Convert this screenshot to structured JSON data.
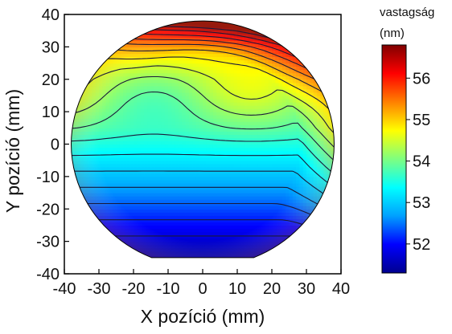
{
  "chart_data": {
    "type": "heatmap",
    "subtype": "contour map on circular wafer",
    "xlabel": "X pozíció (mm)",
    "ylabel": "Y pozíció (mm)",
    "xlim": [
      -40,
      40
    ],
    "ylim": [
      -40,
      40
    ],
    "x_ticks": [
      "-40",
      "-30",
      "-20",
      "-10",
      "0",
      "10",
      "20",
      "30",
      "40"
    ],
    "y_ticks": [
      "40",
      "30",
      "20",
      "10",
      "0",
      "-10",
      "-20",
      "-30",
      "-40"
    ],
    "wafer_radius_mm": 38,
    "flat_cut_y_mm": -35,
    "colorbar": {
      "title_line1": "vastagság",
      "title_line2": "(nm)",
      "range": [
        51.3,
        56.8
      ],
      "ticks": [
        "56",
        "55",
        "54",
        "53",
        "52"
      ],
      "colors": [
        "#00008f",
        "#0000ff",
        "#00a0ff",
        "#00ffff",
        "#7fff7f",
        "#ffff00",
        "#ff8000",
        "#ff0000",
        "#800000"
      ]
    },
    "thickness_profile": [
      {
        "y": -34,
        "value": 51.5
      },
      {
        "y": -30,
        "value": 51.7
      },
      {
        "y": -25,
        "value": 52.0
      },
      {
        "y": -20,
        "value": 52.3
      },
      {
        "y": -15,
        "value": 52.6
      },
      {
        "y": -10,
        "value": 52.9
      },
      {
        "y": -5,
        "value": 53.2
      },
      {
        "y": 0,
        "value": 53.5
      },
      {
        "y": 5,
        "value": 53.8
      },
      {
        "y": 10,
        "value": 54.0
      },
      {
        "y": 15,
        "value": 54.2
      },
      {
        "y": 20,
        "value": 54.4
      },
      {
        "y": 25,
        "value": 54.7
      },
      {
        "y": 30,
        "value": 55.1
      },
      {
        "y": 35,
        "value": 55.8
      },
      {
        "y": 38,
        "value": 56.4
      }
    ]
  }
}
